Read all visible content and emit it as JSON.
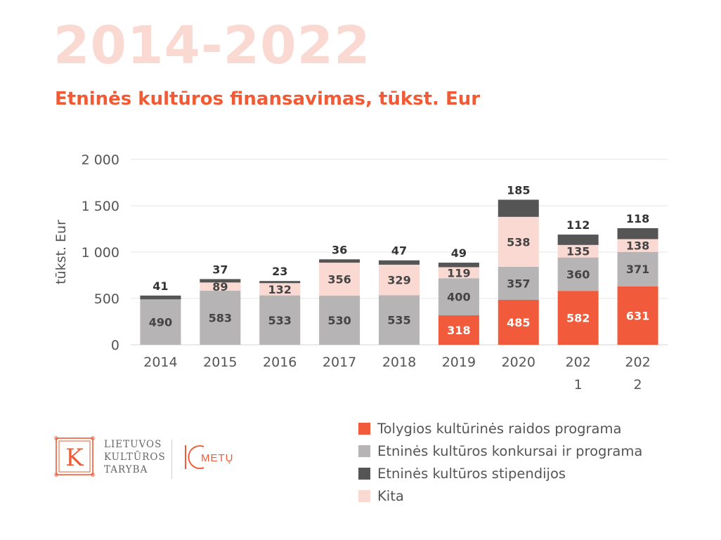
{
  "header": {
    "title": "2014-2022",
    "subtitle": "Etninės kultūros finansavimas, tūkst. Eur"
  },
  "chart_data": {
    "type": "bar",
    "stacked": true,
    "categories": [
      [
        "2014"
      ],
      [
        "2015"
      ],
      [
        "2016"
      ],
      [
        "2017"
      ],
      [
        "2018"
      ],
      [
        "2019"
      ],
      [
        "2020"
      ],
      [
        "202",
        "1"
      ],
      [
        "202",
        "2"
      ]
    ],
    "ylabel": "tūkst. Eur",
    "ylim": [
      0,
      2000
    ],
    "yticks": [
      0,
      500,
      1000,
      1500,
      2000
    ],
    "ytick_labels": [
      "0",
      "500",
      "1 000",
      "1 500",
      "2 000"
    ],
    "grid": true,
    "legend_position": "bottom-right",
    "series": [
      {
        "name": "Tolygios kultūrinės raidos programa",
        "color": "#f15a3a",
        "label_color": "#ffffff",
        "values": [
          null,
          null,
          null,
          null,
          null,
          318,
          485,
          582,
          631
        ]
      },
      {
        "name": "Etninės kultūros konkursai ir programa",
        "color": "#b6b4b4",
        "label_color": "#444444",
        "values": [
          490,
          583,
          533,
          530,
          535,
          400,
          357,
          360,
          371
        ]
      },
      {
        "name": "Kita",
        "color": "#fbd9d3",
        "label_color": "#444444",
        "values": [
          null,
          89,
          132,
          356,
          329,
          119,
          538,
          135,
          138
        ]
      },
      {
        "name": "Etninės kultūros stipendijos",
        "color": "#555555",
        "label_color": "#333333",
        "values": [
          41,
          37,
          23,
          36,
          47,
          49,
          185,
          112,
          118
        ]
      }
    ]
  },
  "legend": {
    "items": [
      {
        "label": "Tolygios kultūrinės raidos programa",
        "color": "#f15a3a"
      },
      {
        "label": "Etninės kultūros konkursai ir programa",
        "color": "#b6b4b4"
      },
      {
        "label": "Etninės kultūros stipendijos",
        "color": "#555555"
      },
      {
        "label": "Kita",
        "color": "#fbd9d3"
      }
    ]
  },
  "logo": {
    "line1": "LIETUVOS",
    "line2": "KULTŪROS",
    "line3": "TARYBA",
    "anniversary": "METŲ",
    "brand_color": "#f15a35"
  }
}
